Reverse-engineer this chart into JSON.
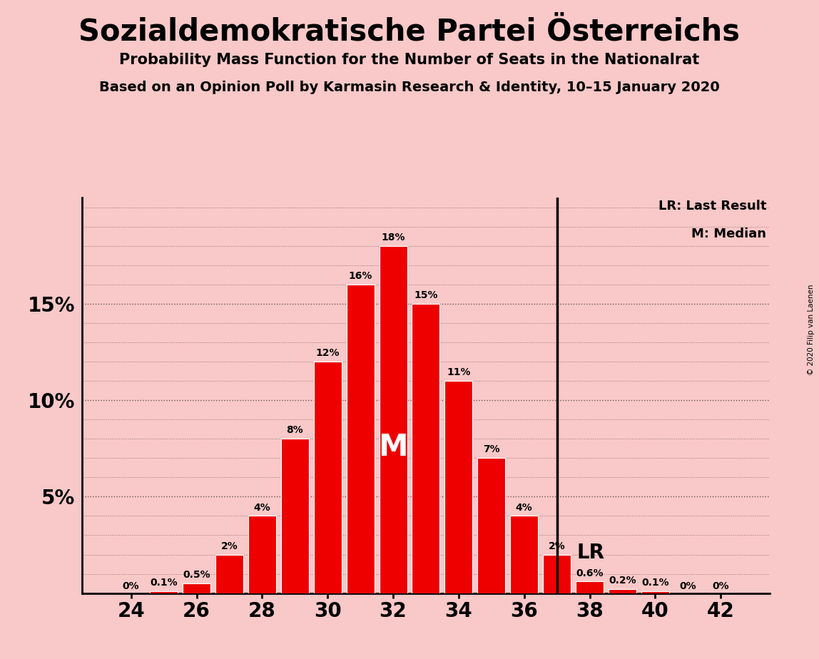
{
  "title": "Sozialdemokratische Partei Österreichs",
  "subtitle1": "Probability Mass Function for the Number of Seats in the Nationalrat",
  "subtitle2": "Based on an Opinion Poll by Karmasin Research & Identity, 10–15 January 2020",
  "copyright": "© 2020 Filip van Laenen",
  "seats": [
    24,
    25,
    26,
    27,
    28,
    29,
    30,
    31,
    32,
    33,
    34,
    35,
    36,
    37,
    38,
    39,
    40,
    41,
    42
  ],
  "probabilities": [
    0.0,
    0.001,
    0.005,
    0.02,
    0.04,
    0.08,
    0.12,
    0.16,
    0.18,
    0.15,
    0.11,
    0.07,
    0.04,
    0.02,
    0.006,
    0.002,
    0.001,
    0.0,
    0.0
  ],
  "labels": [
    "0%",
    "0.1%",
    "0.5%",
    "2%",
    "4%",
    "8%",
    "12%",
    "16%",
    "18%",
    "15%",
    "11%",
    "7%",
    "4%",
    "2%",
    "0.6%",
    "0.2%",
    "0.1%",
    "0%",
    "0%"
  ],
  "bar_color": "#ee0000",
  "background_color": "#f9c8c8",
  "median_seat": 32,
  "last_result_seat": 37,
  "ylim": [
    0,
    0.205
  ],
  "ytick_positions": [
    0.05,
    0.1,
    0.15
  ],
  "ytick_labels": [
    "5%",
    "10%",
    "15%"
  ],
  "xticks": [
    24,
    26,
    28,
    30,
    32,
    34,
    36,
    38,
    40,
    42
  ],
  "xlim": [
    22.5,
    43.5
  ]
}
